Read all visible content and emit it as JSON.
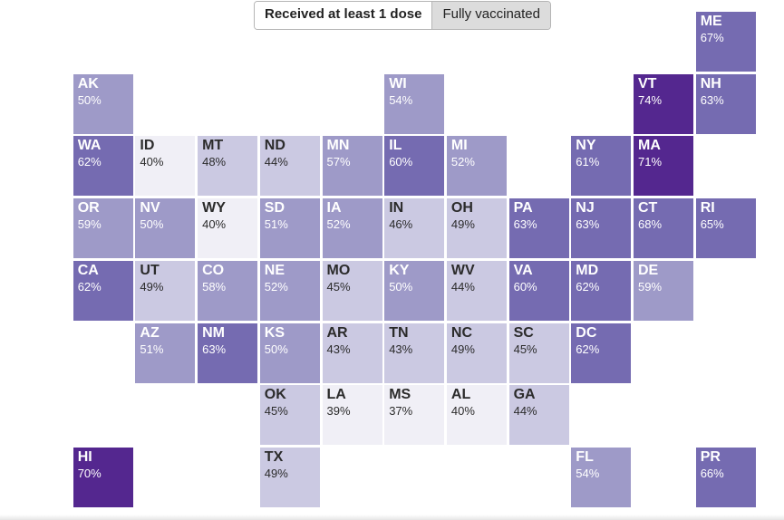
{
  "toggle": {
    "options": [
      "Received at least 1 dose",
      "Fully vaccinated"
    ],
    "selected": "Received at least 1 dose"
  },
  "chart_data": {
    "type": "heatmap",
    "metric": "Received at least 1 dose",
    "unit": "%",
    "states": [
      {
        "abbr": "ME",
        "value": 67,
        "row": 0,
        "col": 11
      },
      {
        "abbr": "AK",
        "value": 50,
        "row": 1,
        "col": 1
      },
      {
        "abbr": "WI",
        "value": 54,
        "row": 1,
        "col": 6
      },
      {
        "abbr": "VT",
        "value": 74,
        "row": 1,
        "col": 10
      },
      {
        "abbr": "NH",
        "value": 63,
        "row": 1,
        "col": 11
      },
      {
        "abbr": "WA",
        "value": 62,
        "row": 2,
        "col": 1
      },
      {
        "abbr": "ID",
        "value": 40,
        "row": 2,
        "col": 2
      },
      {
        "abbr": "MT",
        "value": 48,
        "row": 2,
        "col": 3
      },
      {
        "abbr": "ND",
        "value": 44,
        "row": 2,
        "col": 4
      },
      {
        "abbr": "MN",
        "value": 57,
        "row": 2,
        "col": 5
      },
      {
        "abbr": "IL",
        "value": 60,
        "row": 2,
        "col": 6
      },
      {
        "abbr": "MI",
        "value": 52,
        "row": 2,
        "col": 7
      },
      {
        "abbr": "NY",
        "value": 61,
        "row": 2,
        "col": 9
      },
      {
        "abbr": "MA",
        "value": 71,
        "row": 2,
        "col": 10
      },
      {
        "abbr": "OR",
        "value": 59,
        "row": 3,
        "col": 1
      },
      {
        "abbr": "NV",
        "value": 50,
        "row": 3,
        "col": 2
      },
      {
        "abbr": "WY",
        "value": 40,
        "row": 3,
        "col": 3
      },
      {
        "abbr": "SD",
        "value": 51,
        "row": 3,
        "col": 4
      },
      {
        "abbr": "IA",
        "value": 52,
        "row": 3,
        "col": 5
      },
      {
        "abbr": "IN",
        "value": 46,
        "row": 3,
        "col": 6
      },
      {
        "abbr": "OH",
        "value": 49,
        "row": 3,
        "col": 7
      },
      {
        "abbr": "PA",
        "value": 63,
        "row": 3,
        "col": 8
      },
      {
        "abbr": "NJ",
        "value": 63,
        "row": 3,
        "col": 9
      },
      {
        "abbr": "CT",
        "value": 68,
        "row": 3,
        "col": 10
      },
      {
        "abbr": "RI",
        "value": 65,
        "row": 3,
        "col": 11
      },
      {
        "abbr": "CA",
        "value": 62,
        "row": 4,
        "col": 1
      },
      {
        "abbr": "UT",
        "value": 49,
        "row": 4,
        "col": 2
      },
      {
        "abbr": "CO",
        "value": 58,
        "row": 4,
        "col": 3
      },
      {
        "abbr": "NE",
        "value": 52,
        "row": 4,
        "col": 4
      },
      {
        "abbr": "MO",
        "value": 45,
        "row": 4,
        "col": 5
      },
      {
        "abbr": "KY",
        "value": 50,
        "row": 4,
        "col": 6
      },
      {
        "abbr": "WV",
        "value": 44,
        "row": 4,
        "col": 7
      },
      {
        "abbr": "VA",
        "value": 60,
        "row": 4,
        "col": 8
      },
      {
        "abbr": "MD",
        "value": 62,
        "row": 4,
        "col": 9
      },
      {
        "abbr": "DE",
        "value": 59,
        "row": 4,
        "col": 10
      },
      {
        "abbr": "AZ",
        "value": 51,
        "row": 5,
        "col": 2
      },
      {
        "abbr": "NM",
        "value": 63,
        "row": 5,
        "col": 3
      },
      {
        "abbr": "KS",
        "value": 50,
        "row": 5,
        "col": 4
      },
      {
        "abbr": "AR",
        "value": 43,
        "row": 5,
        "col": 5
      },
      {
        "abbr": "TN",
        "value": 43,
        "row": 5,
        "col": 6
      },
      {
        "abbr": "NC",
        "value": 49,
        "row": 5,
        "col": 7
      },
      {
        "abbr": "SC",
        "value": 45,
        "row": 5,
        "col": 8
      },
      {
        "abbr": "DC",
        "value": 62,
        "row": 5,
        "col": 9
      },
      {
        "abbr": "OK",
        "value": 45,
        "row": 6,
        "col": 4
      },
      {
        "abbr": "LA",
        "value": 39,
        "row": 6,
        "col": 5
      },
      {
        "abbr": "MS",
        "value": 37,
        "row": 6,
        "col": 6
      },
      {
        "abbr": "AL",
        "value": 40,
        "row": 6,
        "col": 7
      },
      {
        "abbr": "GA",
        "value": 44,
        "row": 6,
        "col": 8
      },
      {
        "abbr": "HI",
        "value": 70,
        "row": 7,
        "col": 1
      },
      {
        "abbr": "TX",
        "value": 49,
        "row": 7,
        "col": 4
      },
      {
        "abbr": "FL",
        "value": 54,
        "row": 7,
        "col": 9
      },
      {
        "abbr": "PR",
        "value": 66,
        "row": 7,
        "col": 11
      }
    ],
    "color_scale": [
      {
        "min": 0,
        "fill": "#f0eff6",
        "text": "#2b2b2b"
      },
      {
        "min": 42,
        "fill": "#cbc9e2",
        "text": "#2b2b2b"
      },
      {
        "min": 50,
        "fill": "#9e9ac8",
        "text": "#ffffff"
      },
      {
        "min": 60,
        "fill": "#756bb1",
        "text": "#ffffff"
      },
      {
        "min": 70,
        "fill": "#54278f",
        "text": "#ffffff"
      }
    ]
  }
}
